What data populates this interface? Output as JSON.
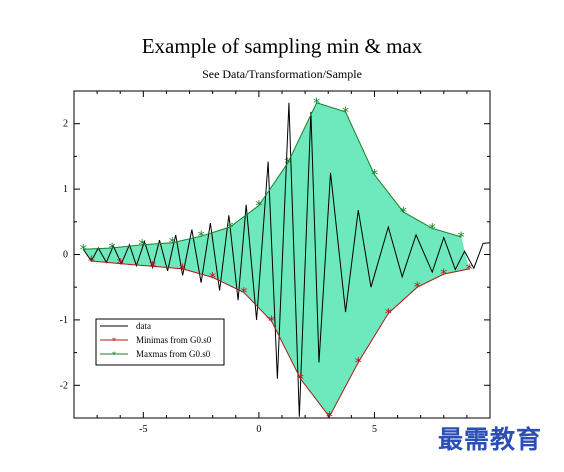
{
  "colors": {
    "fill": "#6ee8bd",
    "data_line": "#000000",
    "minima": "#b01818",
    "maxima": "#18802a",
    "watermark": "#2b4fb3"
  },
  "watermark": {
    "text": "最需教育"
  },
  "chart_data": {
    "type": "line",
    "title": "Example of sampling min & max",
    "subtitle": "See Data/Transformation/Sample",
    "xlabel": "",
    "ylabel": "",
    "xlim": [
      -8,
      10
    ],
    "ylim": [
      -2.5,
      2.5
    ],
    "x_ticks": [
      -5,
      0,
      5
    ],
    "y_ticks": [
      -2,
      -1,
      0,
      1,
      2
    ],
    "grid": false,
    "legend_position": "bottom-left",
    "series": [
      {
        "name": "data",
        "marker": "none",
        "x": [
          -7.6,
          -7.25,
          -6.95,
          -6.6,
          -6.3,
          -5.95,
          -5.6,
          -5.3,
          -4.95,
          -4.6,
          -4.3,
          -3.95,
          -3.6,
          -3.3,
          -2.9,
          -2.5,
          -2.1,
          -1.7,
          -1.3,
          -0.9,
          -0.55,
          -0.1,
          0.4,
          0.8,
          1.3,
          1.75,
          2.25,
          2.6,
          3.1,
          3.75,
          4.3,
          4.85,
          5.6,
          6.2,
          6.8,
          7.5,
          8.0,
          8.5,
          8.9,
          9.3,
          9.7,
          10.0
        ],
        "y": [
          0.08,
          -0.1,
          0.1,
          -0.12,
          0.13,
          -0.14,
          0.15,
          -0.17,
          0.2,
          -0.2,
          0.22,
          -0.25,
          0.3,
          -0.32,
          0.38,
          -0.43,
          0.48,
          -0.55,
          0.6,
          -0.7,
          0.76,
          -1.0,
          1.42,
          -1.9,
          2.32,
          -2.48,
          2.18,
          -1.65,
          1.25,
          -0.88,
          0.68,
          -0.5,
          0.42,
          -0.34,
          0.3,
          -0.27,
          0.26,
          -0.23,
          0.05,
          -0.21,
          0.17,
          0.18
        ]
      },
      {
        "name": "Minimas from G0.s0",
        "marker": "asterisk",
        "x": [
          -7.25,
          -6.0,
          -4.6,
          -3.3,
          -2.0,
          -0.65,
          0.55,
          1.8,
          3.05,
          4.3,
          5.6,
          6.85,
          8.0,
          9.1
        ],
        "y": [
          -0.1,
          -0.14,
          -0.18,
          -0.22,
          -0.35,
          -0.58,
          -1.02,
          -1.9,
          -2.48,
          -1.65,
          -0.9,
          -0.5,
          -0.3,
          -0.22
        ]
      },
      {
        "name": "Maxmas from G0.s0",
        "marker": "asterisk",
        "x": [
          -7.6,
          -6.35,
          -5.05,
          -3.75,
          -2.5,
          -1.25,
          0.0,
          1.25,
          2.5,
          3.75,
          5.0,
          6.25,
          7.5,
          8.75
        ],
        "y": [
          0.08,
          0.1,
          0.15,
          0.18,
          0.28,
          0.42,
          0.75,
          1.4,
          2.32,
          2.18,
          1.22,
          0.65,
          0.4,
          0.27
        ]
      }
    ]
  }
}
